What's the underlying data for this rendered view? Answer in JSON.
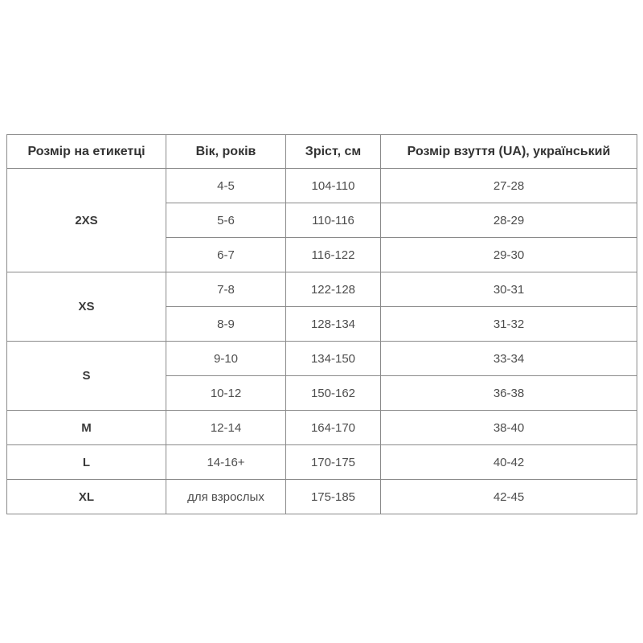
{
  "chart_data": {
    "type": "table",
    "columns": [
      "Розмір на етикетці",
      "Вік, років",
      "Зріст, см",
      "Розмір взуття (UA), український"
    ],
    "groups": [
      {
        "size": "2XS",
        "rows": [
          [
            "4-5",
            "104-110",
            "27-28"
          ],
          [
            "5-6",
            "110-116",
            "28-29"
          ],
          [
            "6-7",
            "116-122",
            "29-30"
          ]
        ]
      },
      {
        "size": "XS",
        "rows": [
          [
            "7-8",
            "122-128",
            "30-31"
          ],
          [
            "8-9",
            "128-134",
            "31-32"
          ]
        ]
      },
      {
        "size": "S",
        "rows": [
          [
            "9-10",
            "134-150",
            "33-34"
          ],
          [
            "10-12",
            "150-162",
            "36-38"
          ]
        ]
      },
      {
        "size": "M",
        "rows": [
          [
            "12-14",
            "164-170",
            "38-40"
          ]
        ]
      },
      {
        "size": "L",
        "rows": [
          [
            "14-16+",
            "170-175",
            "40-42"
          ]
        ]
      },
      {
        "size": "XL",
        "rows": [
          [
            "для взрослых",
            "175-185",
            "42-45"
          ]
        ]
      }
    ],
    "colors": {
      "background": "#ffffff",
      "border": "#8a8a8a",
      "header_text": "#333333",
      "cell_text": "#4d4d4d"
    }
  }
}
